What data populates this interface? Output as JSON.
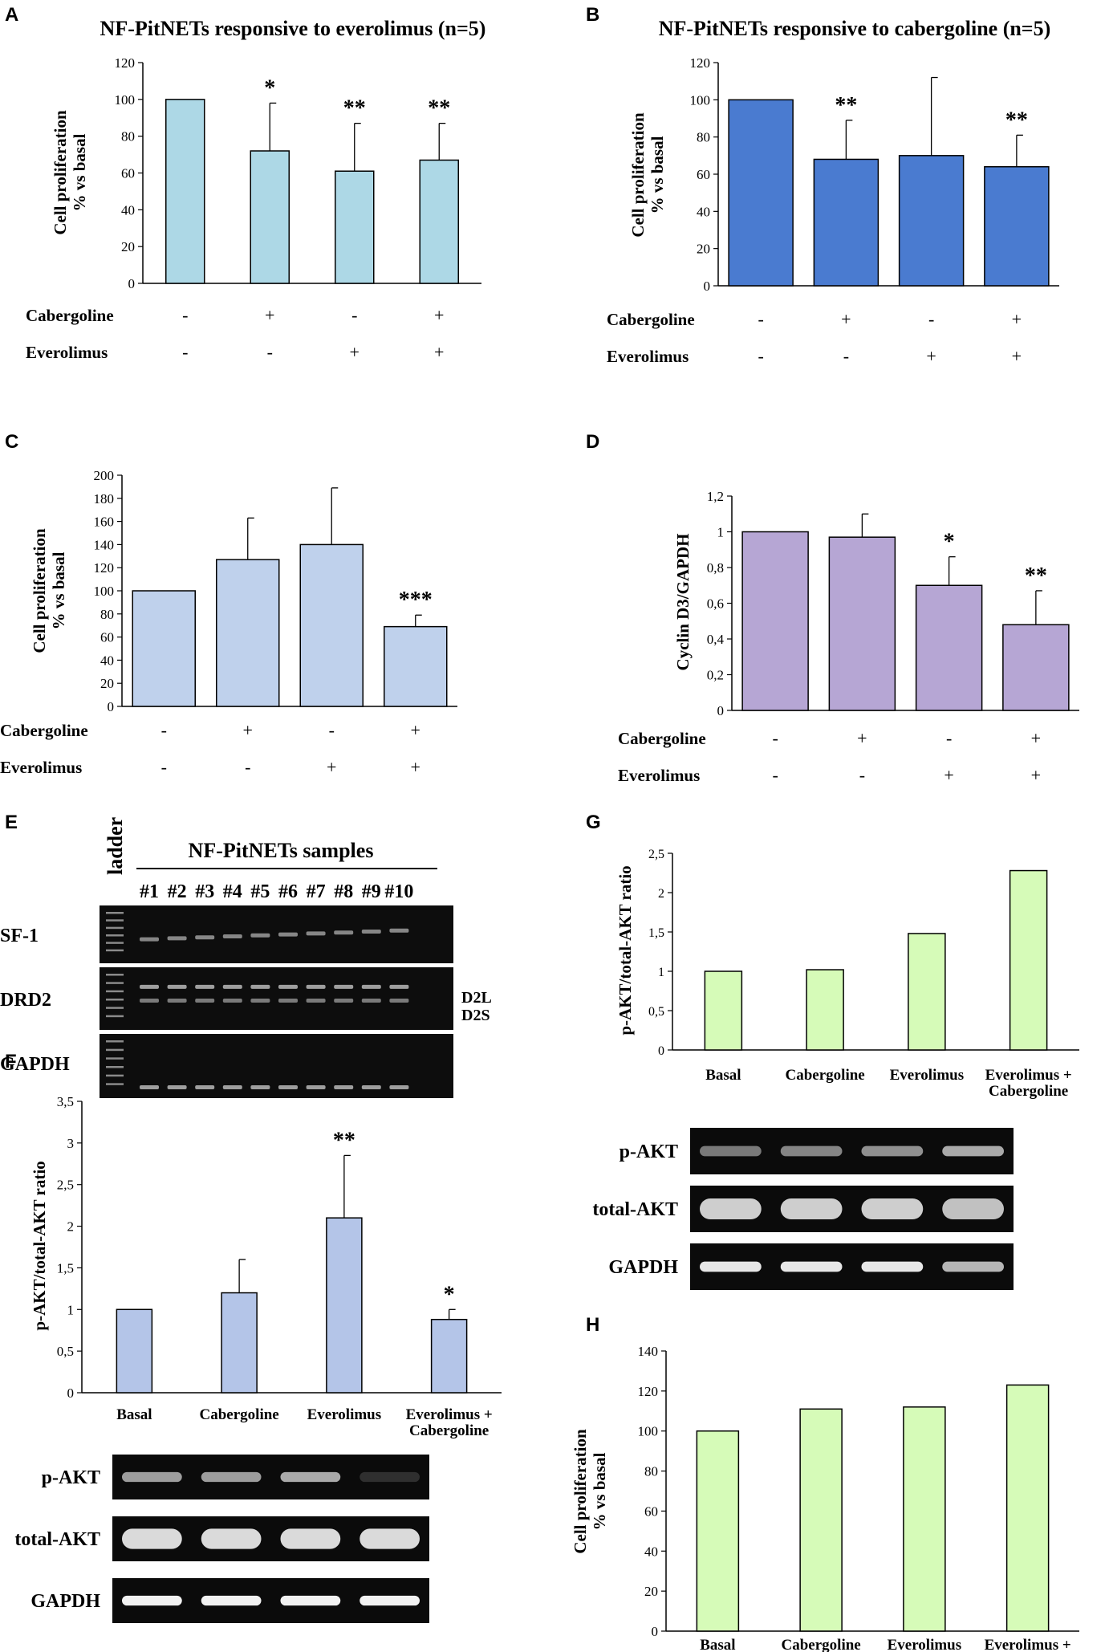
{
  "chart_data": [
    {
      "id": "A",
      "type": "bar",
      "panel_label": "A",
      "title": "NF-PitNETs responsive to everolimus (n=5)",
      "ylabel_lines": [
        "Cell proliferation",
        "% vs basal"
      ],
      "ylim": [
        0,
        120
      ],
      "yticks": [
        "0",
        "20",
        "40",
        "60",
        "80",
        "100",
        "120"
      ],
      "tick_values": [
        0,
        20,
        40,
        60,
        80,
        100,
        120
      ],
      "values": [
        100,
        72,
        61,
        67
      ],
      "errors": [
        0,
        26,
        26,
        20
      ],
      "significance": [
        "",
        "*",
        "**",
        "**"
      ],
      "color": "#ADD8E6",
      "treatments": [
        {
          "label": "Cabergoline",
          "signs": [
            "-",
            "+",
            "-",
            "+"
          ]
        },
        {
          "label": "Everolimus",
          "signs": [
            "-",
            "-",
            "+",
            "+"
          ]
        }
      ]
    },
    {
      "id": "B",
      "type": "bar",
      "panel_label": "B",
      "title": "NF-PitNETs responsive to cabergoline (n=5)",
      "ylabel_lines": [
        "Cell proliferation",
        "% vs basal"
      ],
      "ylim": [
        0,
        120
      ],
      "yticks": [
        "0",
        "20",
        "40",
        "60",
        "80",
        "100",
        "120"
      ],
      "tick_values": [
        0,
        20,
        40,
        60,
        80,
        100,
        120
      ],
      "values": [
        100,
        68,
        70,
        64
      ],
      "errors": [
        0,
        21,
        42,
        17
      ],
      "significance": [
        "",
        "**",
        "",
        "**"
      ],
      "color": "#4A7BD0",
      "treatments": [
        {
          "label": "Cabergoline",
          "signs": [
            "-",
            "+",
            "-",
            "+"
          ]
        },
        {
          "label": "Everolimus",
          "signs": [
            "-",
            "-",
            "+",
            "+"
          ]
        }
      ]
    },
    {
      "id": "C",
      "type": "bar",
      "panel_label": "C",
      "title": "",
      "ylabel_lines": [
        "Cell proliferation",
        "% vs basal"
      ],
      "ylim": [
        0,
        200
      ],
      "yticks": [
        "0",
        "20",
        "40",
        "60",
        "80",
        "100",
        "120",
        "140",
        "160",
        "180",
        "200"
      ],
      "tick_values": [
        0,
        20,
        40,
        60,
        80,
        100,
        120,
        140,
        160,
        180,
        200
      ],
      "values": [
        100,
        127,
        140,
        69
      ],
      "errors": [
        0,
        36,
        49,
        10
      ],
      "significance": [
        "",
        "",
        "",
        "***"
      ],
      "color": "#BFD1EC",
      "treatments": [
        {
          "label": "Cabergoline",
          "signs": [
            "-",
            "+",
            "-",
            "+"
          ]
        },
        {
          "label": "Everolimus",
          "signs": [
            "-",
            "-",
            "+",
            "+"
          ]
        }
      ]
    },
    {
      "id": "D",
      "type": "bar",
      "panel_label": "D",
      "title": "",
      "ylabel_lines": [
        "Cyclin D3/GAPDH"
      ],
      "ylim": [
        0,
        1.2
      ],
      "yticks": [
        "0",
        "0,2",
        "0,4",
        "0,6",
        "0,8",
        "1",
        "1,2"
      ],
      "tick_values": [
        0,
        0.2,
        0.4,
        0.6,
        0.8,
        1,
        1.2
      ],
      "values": [
        1.0,
        0.97,
        0.7,
        0.48
      ],
      "errors": [
        0,
        0.13,
        0.16,
        0.19
      ],
      "significance": [
        "",
        "",
        "*",
        "**"
      ],
      "color": "#B6A6D4",
      "treatments": [
        {
          "label": "Cabergoline",
          "signs": [
            "-",
            "+",
            "-",
            "+"
          ]
        },
        {
          "label": "Everolimus",
          "signs": [
            "-",
            "-",
            "+",
            "+"
          ]
        }
      ]
    },
    {
      "id": "F",
      "type": "bar",
      "panel_label": "F",
      "title": "",
      "ylabel_lines": [
        "p-AKT/total-AKT ratio"
      ],
      "ylim": [
        0,
        3.5
      ],
      "yticks": [
        "0",
        "0,5",
        "1",
        "1,5",
        "2",
        "2,5",
        "3",
        "3,5"
      ],
      "tick_values": [
        0,
        0.5,
        1,
        1.5,
        2,
        2.5,
        3,
        3.5
      ],
      "categories": [
        "Basal",
        "Cabergoline",
        "Everolimus",
        "Everolimus +|Cabergoline"
      ],
      "values": [
        1.0,
        1.2,
        2.1,
        0.88
      ],
      "errors": [
        0,
        0.4,
        0.75,
        0.12
      ],
      "significance": [
        "",
        "",
        "**",
        "*"
      ],
      "color": "#B4C5E8"
    },
    {
      "id": "G",
      "type": "bar",
      "panel_label": "G",
      "title": "",
      "ylabel_lines": [
        "p-AKT/total-AKT ratio"
      ],
      "ylim": [
        0,
        2.5
      ],
      "yticks": [
        "0",
        "0,5",
        "1",
        "1,5",
        "2",
        "2,5"
      ],
      "tick_values": [
        0,
        0.5,
        1,
        1.5,
        2,
        2.5
      ],
      "categories": [
        "Basal",
        "Cabergoline",
        "Everolimus",
        "Everolimus +|Cabergoline"
      ],
      "values": [
        1.0,
        1.02,
        1.48,
        2.28
      ],
      "errors": [
        0,
        0,
        0,
        0
      ],
      "significance": [
        "",
        "",
        "",
        ""
      ],
      "color": "#D6FBB8"
    },
    {
      "id": "H",
      "type": "bar",
      "panel_label": "H",
      "title": "",
      "ylabel_lines": [
        "Cell proliferation",
        "% vs basal"
      ],
      "ylim": [
        0,
        140
      ],
      "yticks": [
        "0",
        "20",
        "40",
        "60",
        "80",
        "100",
        "120",
        "140"
      ],
      "tick_values": [
        0,
        20,
        40,
        60,
        80,
        100,
        120,
        140
      ],
      "categories": [
        "Basal",
        "Cabergoline",
        "Everolimus",
        "Everolimus +|Cabergoline"
      ],
      "values": [
        100,
        111,
        112,
        123
      ],
      "errors": [
        0,
        0,
        0,
        0
      ],
      "significance": [
        "",
        "",
        "",
        ""
      ],
      "color": "#D6FBB8"
    }
  ],
  "gel_E": {
    "panel_label": "E",
    "header": "NF-PitNETs samples",
    "ladder_label": "ladder",
    "sample_labels": [
      "#1",
      "#2",
      "#3",
      "#4",
      "#5",
      "#6",
      "#7",
      "#8",
      "#9",
      "#10"
    ],
    "rows": [
      "SF-1",
      "DRD2",
      "GAPDH"
    ],
    "band_labels": [
      "D2L",
      "D2S"
    ]
  },
  "blot_F": {
    "rows": [
      "p-AKT",
      "total-AKT",
      "GAPDH"
    ],
    "band_intensity": {
      "p-AKT": [
        0.6,
        0.6,
        0.65,
        0.15
      ],
      "total-AKT": [
        0.85,
        0.85,
        0.85,
        0.85
      ],
      "GAPDH": [
        0.95,
        0.95,
        0.95,
        0.95
      ]
    }
  },
  "blot_G": {
    "rows": [
      "p-AKT",
      "total-AKT",
      "GAPDH"
    ],
    "band_intensity": {
      "p-AKT": [
        0.45,
        0.5,
        0.55,
        0.65
      ],
      "total-AKT": [
        0.8,
        0.8,
        0.8,
        0.75
      ],
      "GAPDH": [
        0.9,
        0.9,
        0.9,
        0.7
      ]
    }
  }
}
